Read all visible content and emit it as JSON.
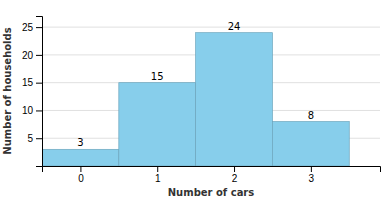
{
  "chart_data": {
    "type": "bar",
    "x": [
      0,
      1,
      2,
      3
    ],
    "values": [
      3,
      15,
      24,
      8
    ],
    "color": "#87ceeb",
    "xlabel": "Number of cars",
    "ylabel": "Number of households",
    "xlim": [
      -0.5,
      3.9
    ],
    "xticks": [
      0,
      1,
      2,
      3
    ],
    "ylim": [
      0,
      27
    ],
    "yticks": [
      5,
      10,
      15,
      20,
      25
    ],
    "grid": true,
    "data_labels": true
  }
}
